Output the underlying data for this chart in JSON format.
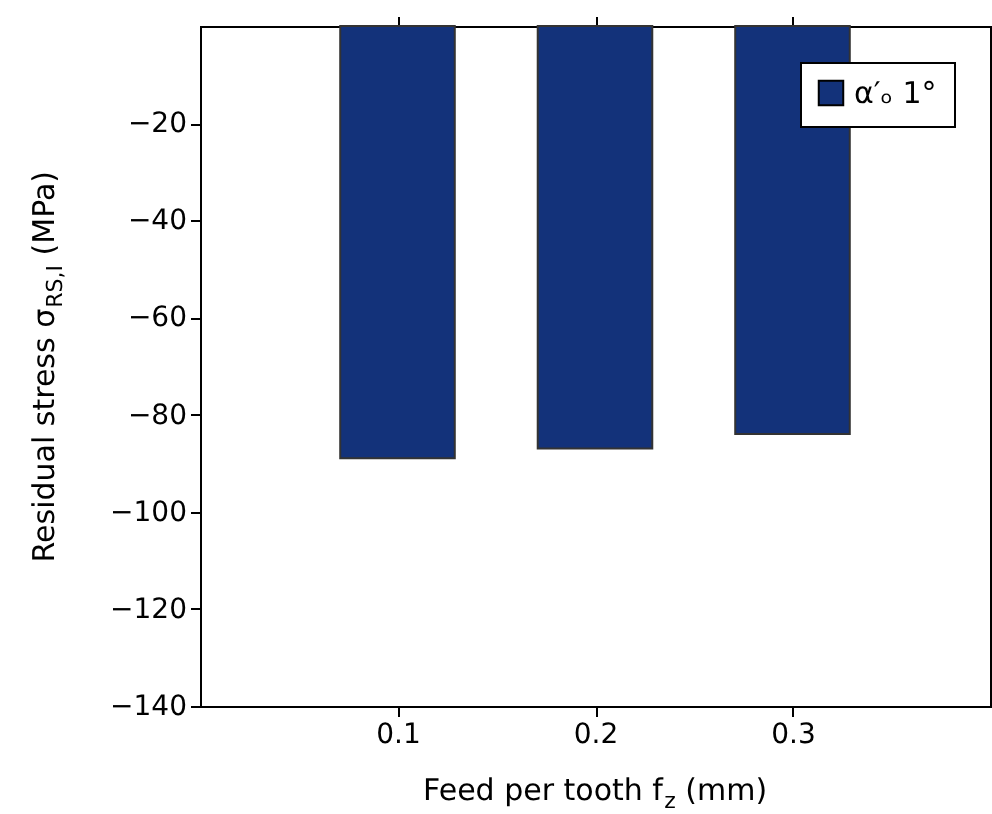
{
  "chart_data": {
    "type": "bar",
    "xlabel": "Feed per tooth f$_{z}$ (mm)",
    "ylabel": "Residual stress σ$_{RS,I}$ (MPa)",
    "x": [
      0.1,
      0.2,
      0.3
    ],
    "series": [
      {
        "name": "α′ₒ 1°",
        "color": "#13327a",
        "values": [
          -89,
          -87,
          -84
        ]
      }
    ],
    "xlim": [
      0,
      0.4
    ],
    "xticks": [
      0.1,
      0.2,
      0.3
    ],
    "ylim": [
      -140,
      0
    ],
    "yticks": [
      -20,
      -40,
      -60,
      -80,
      -100,
      -120,
      -140
    ],
    "grid": false,
    "legend": "top right"
  }
}
